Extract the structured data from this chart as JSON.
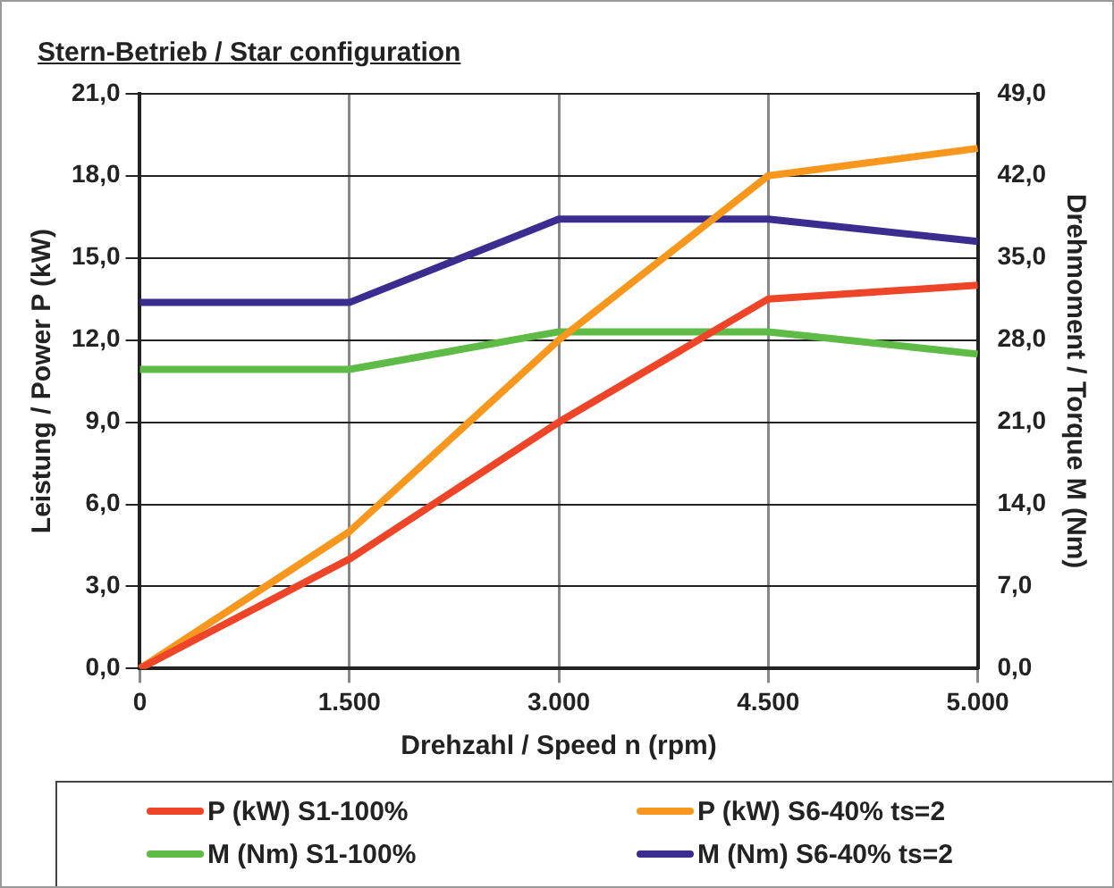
{
  "chart_data": {
    "type": "line",
    "title": "Stern-Betrieb / Star configuration",
    "xlabel": "Drehzahl / Speed n (rpm)",
    "ylabel": "Leistung / Power P (kW)",
    "y2label": "Drehmoment / Torque M (Nm)",
    "categories": [
      "0",
      "1.500",
      "3.000",
      "4.500",
      "5.000"
    ],
    "series": [
      {
        "name": "P (kW) S1-100%",
        "color": "#ee4427",
        "values": [
          0,
          4.0,
          9.0,
          13.5,
          14.0
        ]
      },
      {
        "name": "P (kW) S6-40% ts=2",
        "color": "#f7971e",
        "values": [
          0,
          5.0,
          12.0,
          18.0,
          19.0
        ]
      },
      {
        "name": "M (Nm) S1-100%",
        "color": "#5dbb46",
        "axis": "y2",
        "values": [
          25.5,
          25.5,
          28.7,
          28.7,
          26.8
        ]
      },
      {
        "name": "M (Nm) S6-40% ts=2",
        "color": "#3b2d8f",
        "axis": "y2",
        "values": [
          31.2,
          31.2,
          38.3,
          38.3,
          36.4
        ]
      }
    ],
    "ylim": [
      0,
      21
    ],
    "yticks": [
      {
        "value": 0,
        "label": "0,0"
      },
      {
        "value": 3,
        "label": "3,0"
      },
      {
        "value": 6,
        "label": "6,0"
      },
      {
        "value": 9,
        "label": "9,0"
      },
      {
        "value": 12,
        "label": "12,0"
      },
      {
        "value": 15,
        "label": "15,0"
      },
      {
        "value": 18,
        "label": "18,0"
      },
      {
        "value": 21,
        "label": "21,0"
      }
    ],
    "y2lim": [
      0,
      49
    ],
    "y2ticks": [
      {
        "value": 0,
        "label": "0,0"
      },
      {
        "value": 7,
        "label": "7,0"
      },
      {
        "value": 14,
        "label": "14,0"
      },
      {
        "value": 21,
        "label": "21,0"
      },
      {
        "value": 28,
        "label": "28,0"
      },
      {
        "value": 35,
        "label": "35,0"
      },
      {
        "value": 42,
        "label": "42,0"
      },
      {
        "value": 49,
        "label": "49,0"
      }
    ],
    "grid": true,
    "legend": "bottom",
    "marker": "none",
    "line_style": "solid"
  }
}
